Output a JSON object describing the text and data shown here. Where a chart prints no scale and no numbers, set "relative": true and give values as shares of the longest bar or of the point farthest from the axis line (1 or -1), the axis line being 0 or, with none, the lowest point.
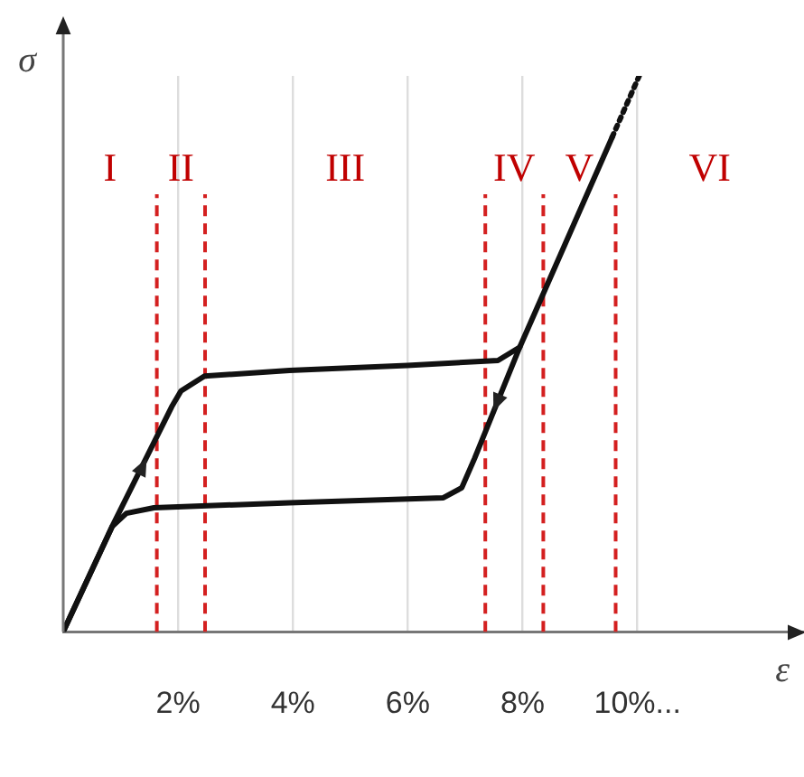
{
  "chart_data": {
    "type": "line",
    "xlabel": "ε",
    "ylabel": "σ",
    "relative": true,
    "xlim": [
      0,
      12.9
    ],
    "xticks": [
      {
        "value": 2,
        "label": "2%"
      },
      {
        "value": 4,
        "label": "4%"
      },
      {
        "value": 6,
        "label": "6%"
      },
      {
        "value": 8,
        "label": "8%"
      },
      {
        "value": 10,
        "label": "10%..."
      }
    ],
    "grid": "x",
    "marker": "none",
    "series": [
      {
        "color": "#111111",
        "x": [
          0,
          0.85,
          1.89,
          2.05,
          2.46,
          3.94,
          5.99,
          7.57,
          7.95,
          9.56
        ],
        "values": [
          0,
          0.189,
          0.405,
          0.433,
          0.46,
          0.47,
          0.479,
          0.488,
          0.512,
          0.89
        ]
      },
      {
        "color": "#111111",
        "x": [
          7.95,
          7.16,
          6.94,
          6.62,
          3.94,
          1.58,
          1.1,
          0.85,
          0
        ],
        "values": [
          0.512,
          0.311,
          0.259,
          0.241,
          0.232,
          0.223,
          0.213,
          0.189,
          0
        ]
      },
      {
        "color": "#111111",
        "line_style": "dotted",
        "x": [
          9.56,
          10.03
        ],
        "values": [
          0.89,
          1
        ]
      }
    ],
    "ref_lines": [
      {
        "axis": "x",
        "value": 1.63,
        "color": "#d42020",
        "line_style": "dashed"
      },
      {
        "axis": "x",
        "value": 2.47,
        "color": "#d42020",
        "line_style": "dashed"
      },
      {
        "axis": "x",
        "value": 7.35,
        "color": "#d42020",
        "line_style": "dashed"
      },
      {
        "axis": "x",
        "value": 8.36,
        "color": "#d42020",
        "line_style": "dashed"
      },
      {
        "axis": "x",
        "value": 9.62,
        "color": "#d42020",
        "line_style": "dashed"
      }
    ],
    "annotations": [
      "I",
      "II",
      "III",
      "IV",
      "V",
      "VI"
    ]
  }
}
